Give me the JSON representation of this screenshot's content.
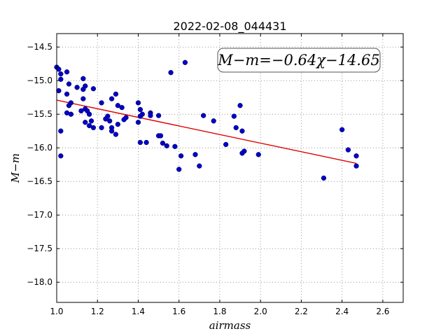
{
  "chart_data": {
    "type": "scatter",
    "title": "2022-02-08_044431",
    "xlabel": "airmass",
    "ylabel": "M−m",
    "xlim": [
      1.0,
      2.7
    ],
    "ylim": [
      -18.3,
      -14.3
    ],
    "y_inverted": true,
    "grid": true,
    "x_ticks": [
      "1.0",
      "1.2",
      "1.4",
      "1.6",
      "1.8",
      "2.0",
      "2.2",
      "2.4",
      "2.6"
    ],
    "y_ticks": [
      "−14.5",
      "−15.0",
      "−15.5",
      "−16.0",
      "−16.5",
      "−17.0",
      "−17.5",
      "−18.0"
    ],
    "annotation": "M−m=−0.64χ−14.65",
    "colors": {
      "points": "#0000cc",
      "fit": "#dd0000",
      "grid": "#888888"
    },
    "fit_line": {
      "slope": -0.64,
      "intercept": -14.65,
      "x_range": [
        1.0,
        2.47
      ]
    },
    "series": [
      {
        "points": [
          [
            1.0,
            -14.8
          ],
          [
            1.01,
            -14.83
          ],
          [
            1.02,
            -14.9
          ],
          [
            1.02,
            -14.98
          ],
          [
            1.05,
            -14.87
          ],
          [
            1.01,
            -15.15
          ],
          [
            1.06,
            -15.05
          ],
          [
            1.05,
            -15.2
          ],
          [
            1.1,
            -15.1
          ],
          [
            1.13,
            -14.97
          ],
          [
            1.14,
            -15.08
          ],
          [
            1.13,
            -15.13
          ],
          [
            1.18,
            -15.12
          ],
          [
            1.13,
            -15.27
          ],
          [
            1.07,
            -15.33
          ],
          [
            1.06,
            -15.37
          ],
          [
            1.05,
            -15.48
          ],
          [
            1.07,
            -15.5
          ],
          [
            1.12,
            -15.45
          ],
          [
            1.14,
            -15.42
          ],
          [
            1.15,
            -15.45
          ],
          [
            1.16,
            -15.5
          ],
          [
            1.14,
            -15.62
          ],
          [
            1.17,
            -15.6
          ],
          [
            1.16,
            -15.67
          ],
          [
            1.18,
            -15.7
          ],
          [
            1.02,
            -15.75
          ],
          [
            1.02,
            -16.12
          ],
          [
            1.22,
            -15.33
          ],
          [
            1.22,
            -15.7
          ],
          [
            1.24,
            -15.57
          ],
          [
            1.25,
            -15.53
          ],
          [
            1.26,
            -15.6
          ],
          [
            1.27,
            -15.27
          ],
          [
            1.27,
            -15.7
          ],
          [
            1.27,
            -15.75
          ],
          [
            1.29,
            -15.8
          ],
          [
            1.29,
            -15.2
          ],
          [
            1.3,
            -15.37
          ],
          [
            1.3,
            -15.65
          ],
          [
            1.32,
            -15.4
          ],
          [
            1.33,
            -15.58
          ],
          [
            1.34,
            -15.55
          ],
          [
            1.4,
            -15.33
          ],
          [
            1.41,
            -15.43
          ],
          [
            1.42,
            -15.5
          ],
          [
            1.4,
            -15.62
          ],
          [
            1.41,
            -15.53
          ],
          [
            1.41,
            -15.92
          ],
          [
            1.44,
            -15.92
          ],
          [
            1.46,
            -15.48
          ],
          [
            1.46,
            -15.52
          ],
          [
            1.5,
            -15.52
          ],
          [
            1.5,
            -15.82
          ],
          [
            1.51,
            -15.82
          ],
          [
            1.52,
            -15.93
          ],
          [
            1.54,
            -15.97
          ],
          [
            1.56,
            -14.88
          ],
          [
            1.58,
            -15.98
          ],
          [
            1.6,
            -16.32
          ],
          [
            1.61,
            -16.12
          ],
          [
            1.63,
            -14.73
          ],
          [
            1.68,
            -16.1
          ],
          [
            1.7,
            -16.27
          ],
          [
            1.72,
            -15.52
          ],
          [
            1.77,
            -15.6
          ],
          [
            1.83,
            -15.95
          ],
          [
            1.87,
            -15.53
          ],
          [
            1.88,
            -15.7
          ],
          [
            1.9,
            -15.37
          ],
          [
            1.91,
            -15.75
          ],
          [
            1.91,
            -16.08
          ],
          [
            1.92,
            -16.05
          ],
          [
            1.99,
            -16.1
          ],
          [
            2.31,
            -16.45
          ],
          [
            2.4,
            -15.73
          ],
          [
            2.43,
            -16.03
          ],
          [
            2.47,
            -16.12
          ],
          [
            2.47,
            -16.27
          ]
        ]
      }
    ]
  }
}
